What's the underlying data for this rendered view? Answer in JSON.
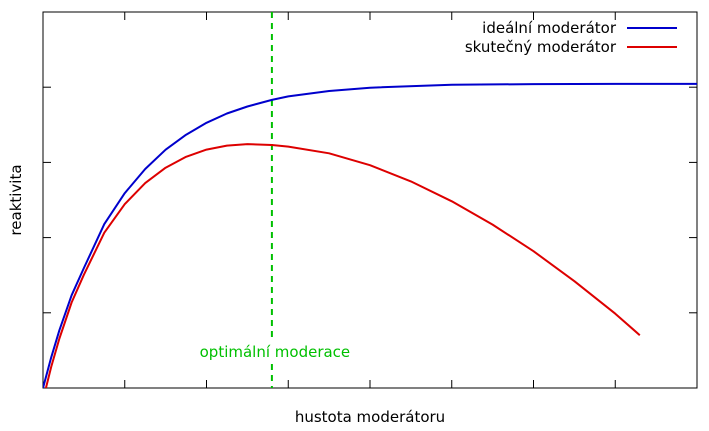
{
  "chart_data": {
    "type": "line",
    "xlabel": "hustota moderátoru",
    "ylabel": "reaktivita",
    "x_ticks_shown": 8,
    "y_ticks_shown": 5,
    "tick_labels_shown": false,
    "grid": false,
    "legend_position": "top-right",
    "series": [
      {
        "name": "ideální moderátor",
        "color": "#0000cc",
        "x": [
          0.0,
          0.1,
          0.2,
          0.35,
          0.5,
          0.75,
          1.0,
          1.25,
          1.5,
          1.75,
          2.0,
          2.25,
          2.5,
          2.8,
          3.0,
          3.5,
          4.0,
          5.0,
          6.0,
          7.0,
          8.0
        ],
        "y": [
          0.0,
          0.195,
          0.369,
          0.592,
          0.766,
          1.046,
          1.244,
          1.398,
          1.521,
          1.617,
          1.693,
          1.752,
          1.797,
          1.839,
          1.861,
          1.896,
          1.917,
          1.935,
          1.94,
          1.941,
          1.941
        ]
      },
      {
        "name": "skutečný moderátor",
        "color": "#dd0000",
        "x": [
          0.0,
          0.1,
          0.2,
          0.35,
          0.5,
          0.75,
          1.0,
          1.25,
          1.5,
          1.75,
          2.0,
          2.25,
          2.5,
          2.8,
          3.0,
          3.5,
          4.0,
          4.5,
          5.0,
          5.5,
          6.0,
          6.5,
          7.0,
          7.3
        ],
        "y": [
          -0.075,
          0.135,
          0.316,
          0.546,
          0.723,
          0.991,
          1.174,
          1.308,
          1.406,
          1.476,
          1.522,
          1.547,
          1.557,
          1.551,
          1.541,
          1.498,
          1.422,
          1.319,
          1.192,
          1.043,
          0.873,
          0.682,
          0.474,
          0.337
        ]
      }
    ],
    "vlines": [
      {
        "x": 2.8,
        "label": "optimální moderace",
        "color": "#00c000",
        "style": "dashed"
      }
    ],
    "xlim": [
      0,
      8
    ],
    "ylim": [
      0,
      2.4
    ]
  }
}
